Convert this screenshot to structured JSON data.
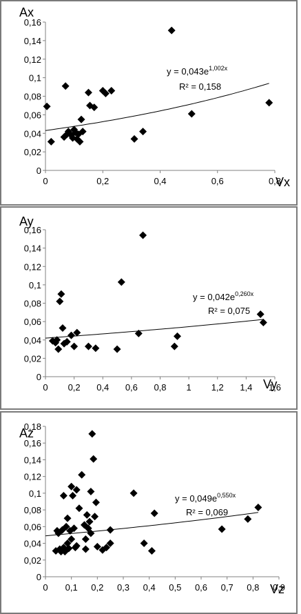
{
  "chart_data": [
    {
      "type": "scatter",
      "xlabel": "Vx",
      "ylabel": "Ax",
      "xlim": [
        0,
        0.8
      ],
      "ylim": [
        0,
        0.16
      ],
      "xticks": [
        "0",
        "0,2",
        "0,4",
        "0,6",
        "0,8"
      ],
      "yticks": [
        "0",
        "0,02",
        "0,04",
        "0,06",
        "0,08",
        "0,1",
        "0,12",
        "0,14",
        "0,16"
      ],
      "trendline": {
        "type": "exponential",
        "a": 0.043,
        "b": 1.002,
        "equation_prefix": "y = 0,043e",
        "equation_exp": "1,002x",
        "r2": "R² = 0,158"
      },
      "points": [
        [
          0.005,
          0.069
        ],
        [
          0.02,
          0.031
        ],
        [
          0.065,
          0.036
        ],
        [
          0.07,
          0.091
        ],
        [
          0.075,
          0.039
        ],
        [
          0.08,
          0.042
        ],
        [
          0.09,
          0.038
        ],
        [
          0.095,
          0.035
        ],
        [
          0.1,
          0.044
        ],
        [
          0.105,
          0.041
        ],
        [
          0.11,
          0.034
        ],
        [
          0.115,
          0.039
        ],
        [
          0.12,
          0.031
        ],
        [
          0.125,
          0.055
        ],
        [
          0.13,
          0.042
        ],
        [
          0.15,
          0.084
        ],
        [
          0.155,
          0.07
        ],
        [
          0.17,
          0.068
        ],
        [
          0.2,
          0.086
        ],
        [
          0.21,
          0.083
        ],
        [
          0.23,
          0.086
        ],
        [
          0.31,
          0.034
        ],
        [
          0.34,
          0.042
        ],
        [
          0.44,
          0.151
        ],
        [
          0.51,
          0.061
        ],
        [
          0.78,
          0.073
        ]
      ]
    },
    {
      "type": "scatter",
      "xlabel": "Vy",
      "ylabel": "Ay",
      "xlim": [
        0,
        1.6
      ],
      "ylim": [
        0,
        0.16
      ],
      "xticks": [
        "0",
        "0,2",
        "0,4",
        "0,6",
        "0,8",
        "1",
        "1,2",
        "1,4",
        "1,6"
      ],
      "yticks": [
        "0",
        "0,02",
        "0,04",
        "0,06",
        "0,08",
        "0,1",
        "0,12",
        "0,14",
        "0,16"
      ],
      "trendline": {
        "type": "exponential",
        "a": 0.042,
        "b": 0.26,
        "equation_prefix": "y = 0,042e",
        "equation_exp": "0,260x",
        "r2": "R² = 0,075"
      },
      "points": [
        [
          0.05,
          0.039
        ],
        [
          0.07,
          0.037
        ],
        [
          0.08,
          0.04
        ],
        [
          0.09,
          0.03
        ],
        [
          0.1,
          0.082
        ],
        [
          0.11,
          0.09
        ],
        [
          0.12,
          0.053
        ],
        [
          0.13,
          0.036
        ],
        [
          0.15,
          0.038
        ],
        [
          0.18,
          0.045
        ],
        [
          0.2,
          0.033
        ],
        [
          0.22,
          0.048
        ],
        [
          0.3,
          0.033
        ],
        [
          0.35,
          0.031
        ],
        [
          0.5,
          0.03
        ],
        [
          0.53,
          0.103
        ],
        [
          0.65,
          0.047
        ],
        [
          0.68,
          0.154
        ],
        [
          0.9,
          0.033
        ],
        [
          0.92,
          0.044
        ],
        [
          1.5,
          0.068
        ],
        [
          1.52,
          0.059
        ]
      ]
    },
    {
      "type": "scatter",
      "xlabel": "Vz",
      "ylabel": "Az",
      "xlim": [
        0,
        0.9
      ],
      "ylim": [
        0,
        0.18
      ],
      "xticks": [
        "0",
        "0,1",
        "0,2",
        "0,3",
        "0,4",
        "0,5",
        "0,6",
        "0,7",
        "0,8",
        "0,9"
      ],
      "yticks": [
        "0",
        "0,02",
        "0,04",
        "0,06",
        "0,08",
        "0,1",
        "0,12",
        "0,14",
        "0,16",
        "0,18"
      ],
      "trendline": {
        "type": "exponential",
        "a": 0.049,
        "b": 0.55,
        "equation_prefix": "y = 0,049e",
        "equation_exp": "0,550x",
        "r2": "R² = 0,069"
      },
      "points": [
        [
          0.04,
          0.031
        ],
        [
          0.045,
          0.055
        ],
        [
          0.05,
          0.052
        ],
        [
          0.055,
          0.033
        ],
        [
          0.06,
          0.03
        ],
        [
          0.065,
          0.056
        ],
        [
          0.07,
          0.097
        ],
        [
          0.07,
          0.035
        ],
        [
          0.075,
          0.03
        ],
        [
          0.08,
          0.06
        ],
        [
          0.085,
          0.04
        ],
        [
          0.085,
          0.07
        ],
        [
          0.09,
          0.034
        ],
        [
          0.095,
          0.055
        ],
        [
          0.1,
          0.108
        ],
        [
          0.1,
          0.045
        ],
        [
          0.105,
          0.097
        ],
        [
          0.11,
          0.058
        ],
        [
          0.115,
          0.035
        ],
        [
          0.12,
          0.104
        ],
        [
          0.12,
          0.037
        ],
        [
          0.13,
          0.082
        ],
        [
          0.14,
          0.122
        ],
        [
          0.15,
          0.062
        ],
        [
          0.155,
          0.033
        ],
        [
          0.155,
          0.045
        ],
        [
          0.16,
          0.074
        ],
        [
          0.165,
          0.058
        ],
        [
          0.17,
          0.066
        ],
        [
          0.175,
          0.052
        ],
        [
          0.175,
          0.102
        ],
        [
          0.18,
          0.171
        ],
        [
          0.185,
          0.141
        ],
        [
          0.19,
          0.072
        ],
        [
          0.195,
          0.089
        ],
        [
          0.2,
          0.036
        ],
        [
          0.22,
          0.032
        ],
        [
          0.235,
          0.035
        ],
        [
          0.25,
          0.056
        ],
        [
          0.25,
          0.04
        ],
        [
          0.34,
          0.1
        ],
        [
          0.38,
          0.04
        ],
        [
          0.41,
          0.031
        ],
        [
          0.42,
          0.076
        ],
        [
          0.68,
          0.057
        ],
        [
          0.78,
          0.069
        ],
        [
          0.82,
          0.083
        ]
      ]
    }
  ]
}
